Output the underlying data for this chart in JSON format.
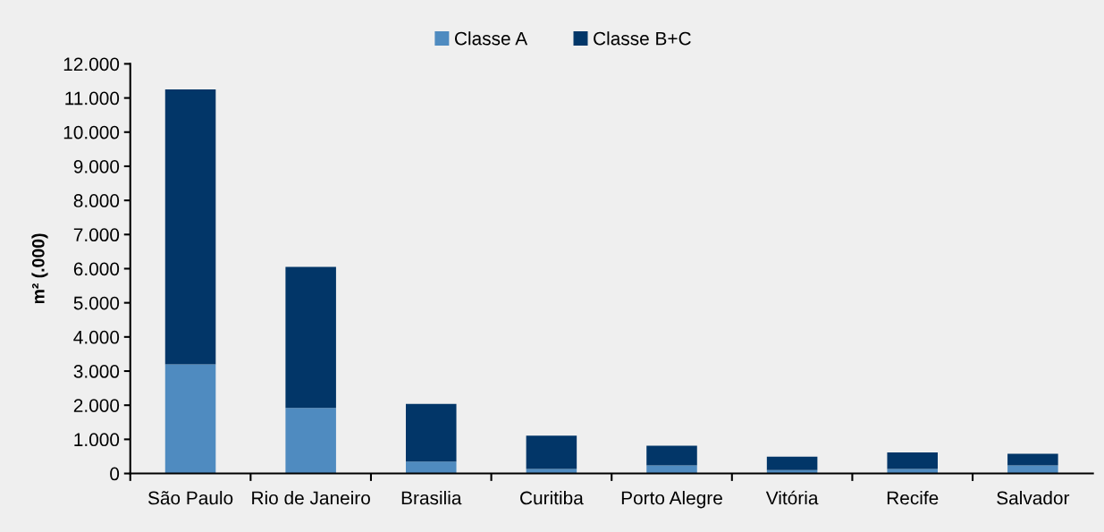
{
  "chart_data": {
    "type": "bar",
    "stacked": true,
    "ylabel": "m² (.000)",
    "categories": [
      "São Paulo",
      "Rio de Janeiro",
      "Brasilia",
      "Curitiba",
      "Porto Alegre",
      "Vitória",
      "Recife",
      "Salvador"
    ],
    "series": [
      {
        "name": "Classe A",
        "color": "#4f8bc0",
        "values": [
          3200,
          1920,
          350,
          130,
          240,
          100,
          130,
          240
        ]
      },
      {
        "name": "Classe B+C",
        "color": "#023668",
        "values": [
          8050,
          4130,
          1690,
          980,
          570,
          390,
          490,
          340
        ]
      }
    ],
    "ylim": [
      0,
      12000
    ],
    "yticks": [
      {
        "value": 0,
        "label": "0"
      },
      {
        "value": 1000,
        "label": "1.000"
      },
      {
        "value": 2000,
        "label": "2.000"
      },
      {
        "value": 3000,
        "label": "3.000"
      },
      {
        "value": 4000,
        "label": "4.000"
      },
      {
        "value": 5000,
        "label": "5.000"
      },
      {
        "value": 6000,
        "label": "6.000"
      },
      {
        "value": 7000,
        "label": "7.000"
      },
      {
        "value": 8000,
        "label": "8.000"
      },
      {
        "value": 9000,
        "label": "9.000"
      },
      {
        "value": 10000,
        "label": "10.000"
      },
      {
        "value": 11000,
        "label": "11.000"
      },
      {
        "value": 12000,
        "label": "12.000"
      }
    ],
    "legend": "top",
    "grid": false
  }
}
